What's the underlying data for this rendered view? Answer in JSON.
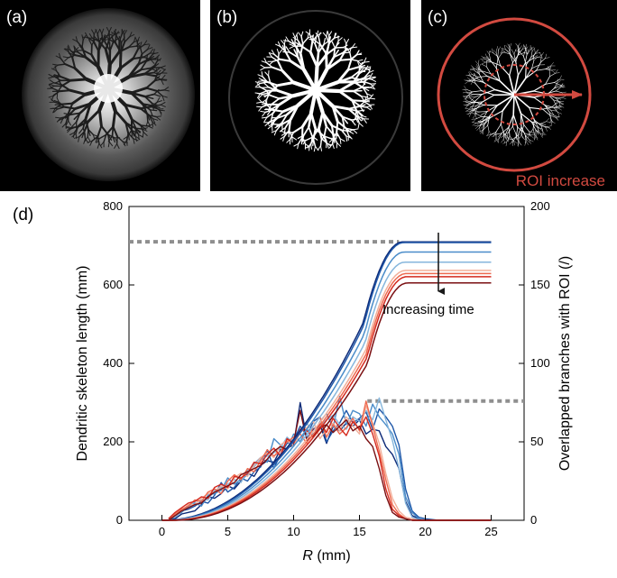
{
  "panels": {
    "a": {
      "label": "(a)"
    },
    "b": {
      "label": "(b)"
    },
    "c": {
      "label": "(c)",
      "annotation": "ROI increase"
    },
    "d": {
      "label": "(d)"
    }
  },
  "colors": {
    "panel_bg": "#000000",
    "dendrite": "#ffffff",
    "roi": "#d24a40",
    "reference": "#8f8f8f",
    "arrow": "#1a1a1a"
  },
  "chart_data": {
    "type": "line",
    "xlabel_italic": "R",
    "xlabel_rest": " (mm)",
    "ylabel_left": "Dendritic skeleton length (mm)",
    "ylabel_right": "Overlapped branches with ROI (/)",
    "xlim": [
      -2.5,
      27.5
    ],
    "ylim_left": [
      0,
      800
    ],
    "ylim_right": [
      0,
      200
    ],
    "xticks": [
      0,
      5,
      10,
      15,
      20,
      25
    ],
    "yticks_left": [
      0,
      200,
      400,
      600,
      800
    ],
    "yticks_right": [
      0,
      50,
      100,
      150,
      200
    ],
    "annotation": "Increasing time",
    "reference_lines": [
      {
        "axis": "left",
        "y": 710,
        "x_from": -2.5,
        "x_to": 18.0
      },
      {
        "axis": "right",
        "y": 76,
        "x_from": 15.6,
        "x_to": 27.5
      }
    ],
    "length_series": [
      {
        "color": "#0d2a78",
        "plateau": 710
      },
      {
        "color": "#1f57a8",
        "plateau": 708
      },
      {
        "color": "#4a8cc9",
        "plateau": 684
      },
      {
        "color": "#86b6dc",
        "plateau": 658
      },
      {
        "color": "#f2b09b",
        "plateau": 637
      },
      {
        "color": "#ee6a4f",
        "plateau": 629
      },
      {
        "color": "#d42a1f",
        "plateau": 621
      },
      {
        "color": "#7a0f12",
        "plateau": 605
      }
    ],
    "branch_series": [
      {
        "color": "#0d2a78",
        "x": [
          0.5,
          1,
          1.5,
          2,
          2.5,
          3,
          3.5,
          4,
          4.5,
          5,
          5.5,
          6,
          6.5,
          7,
          7.5,
          8,
          8.5,
          9,
          9.5,
          10,
          10.5,
          11,
          11.5,
          12,
          12.5,
          13,
          13.5,
          14,
          14.5,
          15,
          15.5,
          16,
          16.5,
          17,
          17.5,
          18,
          18.5,
          19,
          19.5,
          20,
          21,
          25
        ],
        "y": [
          0,
          1,
          4,
          5,
          6,
          10,
          15,
          14,
          17,
          22,
          20,
          25,
          30,
          28,
          35,
          38,
          37,
          45,
          46,
          48,
          75,
          52,
          58,
          61,
          49,
          60,
          57,
          62,
          60,
          64,
          55,
          58,
          57,
          47,
          42,
          33,
          12,
          3,
          1,
          0,
          0,
          0
        ]
      },
      {
        "color": "#1f57a8",
        "x": [
          0.5,
          1,
          1.5,
          2,
          2.5,
          3,
          3.5,
          4,
          4.5,
          5,
          5.5,
          6,
          6.5,
          7,
          7.5,
          8,
          8.5,
          9,
          9.5,
          10,
          10.5,
          11,
          11.5,
          12,
          12.5,
          13,
          13.5,
          14,
          14.5,
          15,
          15.5,
          16,
          16.5,
          17,
          17.5,
          18,
          18.5,
          19,
          19.5,
          20,
          21,
          25
        ],
        "y": [
          0,
          2,
          6,
          7,
          9,
          12,
          11,
          16,
          24,
          18,
          21,
          27,
          25,
          31,
          34,
          45,
          33,
          42,
          49,
          51,
          60,
          54,
          63,
          66,
          50,
          57,
          62,
          70,
          62,
          65,
          69,
          58,
          71,
          66,
          60,
          48,
          20,
          6,
          2,
          1,
          0,
          0
        ]
      },
      {
        "color": "#4a8cc9",
        "x": [
          0.5,
          1,
          1.5,
          2,
          2.5,
          3,
          3.5,
          4,
          4.5,
          5,
          5.5,
          6,
          6.5,
          7,
          7.5,
          8,
          8.5,
          9,
          9.5,
          10,
          10.5,
          11,
          11.5,
          12,
          12.5,
          13,
          13.5,
          14,
          14.5,
          15,
          15.5,
          16,
          16.5,
          17,
          17.5,
          18,
          18.5,
          19,
          19.5,
          20,
          21,
          25
        ],
        "y": [
          1,
          3,
          5,
          9,
          11,
          9,
          16,
          17,
          19,
          27,
          23,
          26,
          29,
          36,
          40,
          37,
          52,
          48,
          45,
          55,
          50,
          58,
          54,
          63,
          68,
          59,
          79,
          61,
          70,
          68,
          60,
          74,
          66,
          61,
          55,
          42,
          15,
          5,
          1,
          0,
          0,
          0
        ]
      },
      {
        "color": "#86b6dc",
        "x": [
          0.5,
          1,
          1.5,
          2,
          2.5,
          3,
          3.5,
          4,
          4.5,
          5,
          5.5,
          6,
          6.5,
          7,
          7.5,
          8,
          8.5,
          9,
          9.5,
          10,
          10.5,
          11,
          11.5,
          12,
          12.5,
          13,
          13.5,
          14,
          14.5,
          15,
          15.5,
          16,
          16.5,
          17,
          17.5,
          18,
          18.5,
          19,
          19.5,
          20,
          21,
          25
        ],
        "y": [
          1,
          2,
          7,
          8,
          12,
          13,
          13,
          19,
          21,
          23,
          26,
          24,
          32,
          34,
          39,
          41,
          43,
          46,
          53,
          49,
          57,
          62,
          55,
          60,
          64,
          67,
          61,
          58,
          66,
          63,
          70,
          64,
          78,
          64,
          51,
          33,
          11,
          2,
          0,
          0,
          0,
          0
        ]
      },
      {
        "color": "#f2b09b",
        "x": [
          0.5,
          1,
          1.5,
          2,
          2.5,
          3,
          3.5,
          4,
          4.5,
          5,
          5.5,
          6,
          6.5,
          7,
          7.5,
          8,
          8.5,
          9,
          9.5,
          10,
          10.5,
          11,
          11.5,
          12,
          12.5,
          13,
          13.5,
          14,
          14.5,
          15,
          15.5,
          16,
          16.5,
          17,
          17.5,
          18,
          18.5,
          19,
          19.5,
          20,
          21,
          25
        ],
        "y": [
          0,
          3,
          6,
          10,
          10,
          14,
          17,
          18,
          22,
          20,
          27,
          30,
          28,
          35,
          40,
          43,
          40,
          48,
          51,
          47,
          56,
          59,
          63,
          52,
          58,
          62,
          57,
          66,
          60,
          55,
          73,
          62,
          49,
          30,
          14,
          6,
          2,
          1,
          0,
          0,
          0,
          0
        ]
      },
      {
        "color": "#ee6a4f",
        "x": [
          0.5,
          1,
          1.5,
          2,
          2.5,
          3,
          3.5,
          4,
          4.5,
          5,
          5.5,
          6,
          6.5,
          7,
          7.5,
          8,
          8.5,
          9,
          9.5,
          10,
          10.5,
          11,
          11.5,
          12,
          12.5,
          13,
          13.5,
          14,
          14.5,
          15,
          15.5,
          16,
          16.5,
          17,
          17.5,
          18,
          18.5,
          19,
          19.5,
          20,
          21,
          25
        ],
        "y": [
          0,
          4,
          7,
          9,
          13,
          12,
          18,
          20,
          17,
          25,
          29,
          26,
          33,
          31,
          38,
          45,
          41,
          44,
          50,
          53,
          55,
          49,
          60,
          66,
          53,
          61,
          55,
          59,
          65,
          57,
          76,
          60,
          44,
          26,
          10,
          4,
          1,
          0,
          0,
          0,
          0,
          0
        ]
      },
      {
        "color": "#d42a1f",
        "x": [
          0.5,
          1,
          1.5,
          2,
          2.5,
          3,
          3.5,
          4,
          4.5,
          5,
          5.5,
          6,
          6.5,
          7,
          7.5,
          8,
          8.5,
          9,
          9.5,
          10,
          10.5,
          11,
          11.5,
          12,
          12.5,
          13,
          13.5,
          14,
          14.5,
          15,
          15.5,
          16,
          16.5,
          17,
          17.5,
          18,
          18.5,
          19,
          19.5,
          20,
          21,
          25
        ],
        "y": [
          1,
          5,
          8,
          11,
          12,
          15,
          14,
          21,
          23,
          21,
          28,
          27,
          30,
          37,
          36,
          42,
          46,
          41,
          52,
          49,
          58,
          57,
          53,
          62,
          56,
          65,
          59,
          54,
          63,
          58,
          66,
          55,
          41,
          20,
          7,
          3,
          1,
          0,
          0,
          0,
          0,
          0
        ]
      },
      {
        "color": "#7a0f12",
        "x": [
          0.5,
          1,
          1.5,
          2,
          2.5,
          3,
          3.5,
          4,
          4.5,
          5,
          5.5,
          6,
          6.5,
          7,
          7.5,
          8,
          8.5,
          9,
          9.5,
          10,
          10.5,
          11,
          11.5,
          12,
          12.5,
          13,
          13.5,
          14,
          14.5,
          15,
          15.5,
          16,
          16.5,
          17,
          17.5,
          18,
          18.5,
          19,
          19.5,
          20,
          21,
          25
        ],
        "y": [
          0,
          3,
          6,
          8,
          10,
          11,
          15,
          18,
          20,
          22,
          24,
          29,
          31,
          33,
          35,
          39,
          44,
          47,
          45,
          50,
          70,
          51,
          54,
          59,
          61,
          56,
          60,
          64,
          57,
          60,
          52,
          47,
          33,
          16,
          5,
          2,
          1,
          0,
          0,
          0,
          0,
          0
        ]
      }
    ]
  }
}
